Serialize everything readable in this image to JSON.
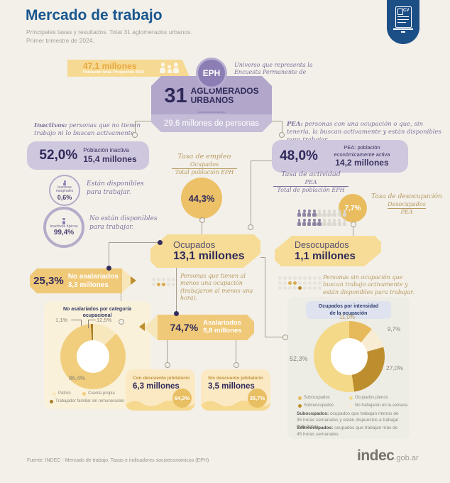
{
  "header": {
    "title": "Mercado de trabajo",
    "subtitle_line1": "Principales tasas y resultados. Total 31 aglomerados urbanos.",
    "subtitle_line2": "Primer trimestre de 2024.",
    "badge_label": "CV",
    "brand_blue": "#1d4f87"
  },
  "population_banner": {
    "value": "47,1 millones",
    "caption": "Población total. Proyección 2024"
  },
  "eph": {
    "badge": "EPH",
    "note": "Universo que representa la Encuesta Permanente de Hogares.",
    "number": "31",
    "label_line1": "AGLOMERADOS",
    "label_line2": "URBANOS",
    "people": "29,6 millones de personas"
  },
  "inactive": {
    "note_bold": "Inactivos:",
    "note": " personas que no tienen trabajo ni lo buscan activamente.",
    "rate": "52,0%",
    "label": "Población inactiva",
    "amount": "15,4 millones",
    "marginales": {
      "label": "Inactivos marginales",
      "pct": "0,6%",
      "desc": "Están disponibles para trabajar."
    },
    "tipicos": {
      "label": "Inactivos típicos",
      "pct": "99,4%",
      "desc": "No están disponibles para trabajar."
    }
  },
  "pea": {
    "note_bold": "PEA:",
    "note": " personas con una ocupación o que, sin tenerla, la buscan activamente y están disponibles para trabajar.",
    "rate": "48,0%",
    "label": "PEA: población económicamente activa",
    "amount": "14,2 millones"
  },
  "employment_rate": {
    "title": "Tasa de empleo",
    "numerator": "Ocupados",
    "denominator": "Total población EPH",
    "value": "44,3%"
  },
  "activity_rate": {
    "title": "Tasa de actividad",
    "numerator": "PEA",
    "denominator": "Total de población EPH"
  },
  "unemployment_rate": {
    "value": "7,7%",
    "title": "Tasa de desocupación",
    "numerator": "Desocupados",
    "denominator": "PEA"
  },
  "ocupados": {
    "title": "Ocupados",
    "amount": "13,1 millones",
    "desc": "Personas que tienen al menos una ocupación (trabajaron al menos una hora)."
  },
  "desocupados": {
    "title": "Desocupados",
    "amount": "1,1 millones",
    "desc": "Personas sin ocupación que buscan trabajo activamente y están disponibles para trabajar."
  },
  "no_asalariados": {
    "rate": "25,3%",
    "label": "No asalariados",
    "amount": "3,3 millones",
    "panel_title": "No asalariados por categoría ocupacional"
  },
  "asalariados": {
    "rate": "74,7%",
    "label": "Asalariados",
    "amount": "9,8 millones",
    "con_descuento": {
      "title": "Con descuento jubilatorio",
      "amount": "6,3 millones",
      "pct": "64,3%"
    },
    "sin_descuento": {
      "title": "Sin descuento jubilatorio",
      "amount": "3,5 millones",
      "pct": "35,7%"
    }
  },
  "intensity": {
    "panel_title": "Ocupados por intensidad de la ocupación",
    "note1_bold": "Subocupados:",
    "note1": " ocupados que trabajan menos de 35 horas semanales y están dispuestos a trabajar más horas.",
    "note2_bold": "Sobreocupados:",
    "note2": " ocupados que trabajan más de 45 horas semanales."
  },
  "footer": {
    "source": "Fuente: INDEC - Mercado de trabajo. Tasas e indicadores socioeconómicos (EPH)",
    "logo_main": "indec",
    "logo_suffix": ".gob.ar"
  },
  "decorations": {
    "pea_persons": [
      "ddddllllll",
      "dddddlllll"
    ],
    "ocupados_dots": [
      ".....",
      ".gg.."
    ],
    "desocupados_dots": [
      ".........",
      "..gg.....",
      "....d...."
    ]
  },
  "chart_data": [
    {
      "type": "donut",
      "title": "No asalariados por categoría ocupacional",
      "slices": [
        {
          "label": "Patrón",
          "value": 12.5,
          "pct": "12,5%",
          "color": "#f8e7bd"
        },
        {
          "label": "Cuenta propia",
          "value": 86.4,
          "pct": "86,4%",
          "color": "#f1ce7d"
        },
        {
          "label": "Trabajador familiar sin remuneración",
          "value": 1.1,
          "pct": "1,1%",
          "color": "#a97f2c"
        }
      ],
      "legend_position": "bottom"
    },
    {
      "type": "donut",
      "title": "Ocupados por intensidad de la ocupación",
      "slices": [
        {
          "label": "Subocupados",
          "value": 11.0,
          "pct": "11,0%",
          "color": "#e6b95b"
        },
        {
          "label": "No trabajaron en la semana",
          "value": 9.7,
          "pct": "9,7%",
          "color": "#f8ecd2"
        },
        {
          "label": "Sobreocupados",
          "value": 27.0,
          "pct": "27,0%",
          "color": "#bd8e2e"
        },
        {
          "label": "Ocupados plenos",
          "value": 52.3,
          "pct": "52,3%",
          "color": "#f4d988"
        }
      ],
      "legend_position": "bottom"
    }
  ]
}
